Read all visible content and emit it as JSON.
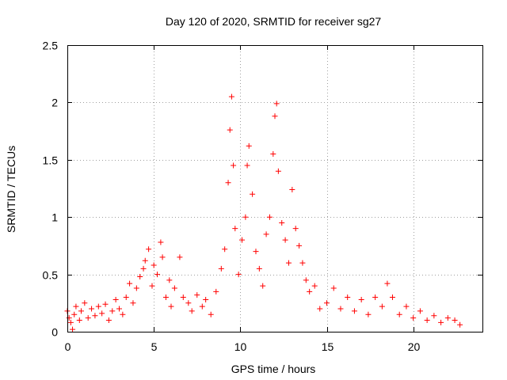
{
  "chart_data": {
    "type": "scatter",
    "title": "Day 120 of 2020, SRMTID for receiver sg27",
    "xlabel": "GPS time / hours",
    "ylabel": "SRMTID / TECUs",
    "xlim": [
      0,
      24
    ],
    "ylim": [
      0,
      2.5
    ],
    "xticks": [
      0,
      5,
      10,
      15,
      20
    ],
    "xtick_labels": [
      "0",
      "5",
      "10",
      "15",
      "20"
    ],
    "yticks": [
      0,
      0.5,
      1,
      1.5,
      2,
      2.5
    ],
    "ytick_labels": [
      "0",
      "0.5",
      "1",
      "1.5",
      "2",
      "2.5"
    ],
    "grid": true,
    "marker": "+",
    "series": [
      {
        "name": "SRMTID",
        "color": "#ff0000",
        "profile_description": "dense scatter; points listed below are representative samples of the envelope",
        "points": [
          [
            0.0,
            0.18
          ],
          [
            0.1,
            0.12
          ],
          [
            0.2,
            0.08
          ],
          [
            0.3,
            0.02
          ],
          [
            0.4,
            0.15
          ],
          [
            0.5,
            0.22
          ],
          [
            0.7,
            0.1
          ],
          [
            0.8,
            0.18
          ],
          [
            1.0,
            0.25
          ],
          [
            1.2,
            0.12
          ],
          [
            1.4,
            0.2
          ],
          [
            1.6,
            0.14
          ],
          [
            1.8,
            0.22
          ],
          [
            2.0,
            0.16
          ],
          [
            2.2,
            0.24
          ],
          [
            2.4,
            0.1
          ],
          [
            2.6,
            0.18
          ],
          [
            2.8,
            0.28
          ],
          [
            3.0,
            0.2
          ],
          [
            3.2,
            0.15
          ],
          [
            3.4,
            0.3
          ],
          [
            3.6,
            0.42
          ],
          [
            3.8,
            0.25
          ],
          [
            4.0,
            0.38
          ],
          [
            4.2,
            0.48
          ],
          [
            4.4,
            0.55
          ],
          [
            4.5,
            0.62
          ],
          [
            4.7,
            0.72
          ],
          [
            4.9,
            0.4
          ],
          [
            5.0,
            0.58
          ],
          [
            5.2,
            0.5
          ],
          [
            5.4,
            0.78
          ],
          [
            5.5,
            0.65
          ],
          [
            5.7,
            0.3
          ],
          [
            5.9,
            0.45
          ],
          [
            6.0,
            0.22
          ],
          [
            6.2,
            0.38
          ],
          [
            6.5,
            0.65
          ],
          [
            6.7,
            0.3
          ],
          [
            7.0,
            0.25
          ],
          [
            7.2,
            0.18
          ],
          [
            7.5,
            0.32
          ],
          [
            7.8,
            0.22
          ],
          [
            8.0,
            0.28
          ],
          [
            8.3,
            0.15
          ],
          [
            8.6,
            0.35
          ],
          [
            8.9,
            0.55
          ],
          [
            9.1,
            0.72
          ],
          [
            9.3,
            1.3
          ],
          [
            9.4,
            1.76
          ],
          [
            9.5,
            2.05
          ],
          [
            9.6,
            1.45
          ],
          [
            9.7,
            0.9
          ],
          [
            9.9,
            0.5
          ],
          [
            10.1,
            0.8
          ],
          [
            10.3,
            1.0
          ],
          [
            10.4,
            1.45
          ],
          [
            10.5,
            1.62
          ],
          [
            10.7,
            1.2
          ],
          [
            10.9,
            0.7
          ],
          [
            11.1,
            0.55
          ],
          [
            11.3,
            0.4
          ],
          [
            11.5,
            0.85
          ],
          [
            11.7,
            1.0
          ],
          [
            11.9,
            1.55
          ],
          [
            12.0,
            1.88
          ],
          [
            12.1,
            1.99
          ],
          [
            12.2,
            1.4
          ],
          [
            12.4,
            0.95
          ],
          [
            12.6,
            0.8
          ],
          [
            12.8,
            0.6
          ],
          [
            13.0,
            1.24
          ],
          [
            13.2,
            0.9
          ],
          [
            13.4,
            0.75
          ],
          [
            13.6,
            0.6
          ],
          [
            13.8,
            0.45
          ],
          [
            14.0,
            0.35
          ],
          [
            14.3,
            0.4
          ],
          [
            14.6,
            0.2
          ],
          [
            15.0,
            0.25
          ],
          [
            15.4,
            0.38
          ],
          [
            15.8,
            0.2
          ],
          [
            16.2,
            0.3
          ],
          [
            16.6,
            0.18
          ],
          [
            17.0,
            0.28
          ],
          [
            17.4,
            0.15
          ],
          [
            17.8,
            0.3
          ],
          [
            18.2,
            0.22
          ],
          [
            18.5,
            0.42
          ],
          [
            18.8,
            0.3
          ],
          [
            19.2,
            0.15
          ],
          [
            19.6,
            0.22
          ],
          [
            20.0,
            0.12
          ],
          [
            20.4,
            0.18
          ],
          [
            20.8,
            0.1
          ],
          [
            21.2,
            0.14
          ],
          [
            21.6,
            0.08
          ],
          [
            22.0,
            0.12
          ],
          [
            22.4,
            0.1
          ],
          [
            22.7,
            0.06
          ]
        ]
      }
    ]
  }
}
